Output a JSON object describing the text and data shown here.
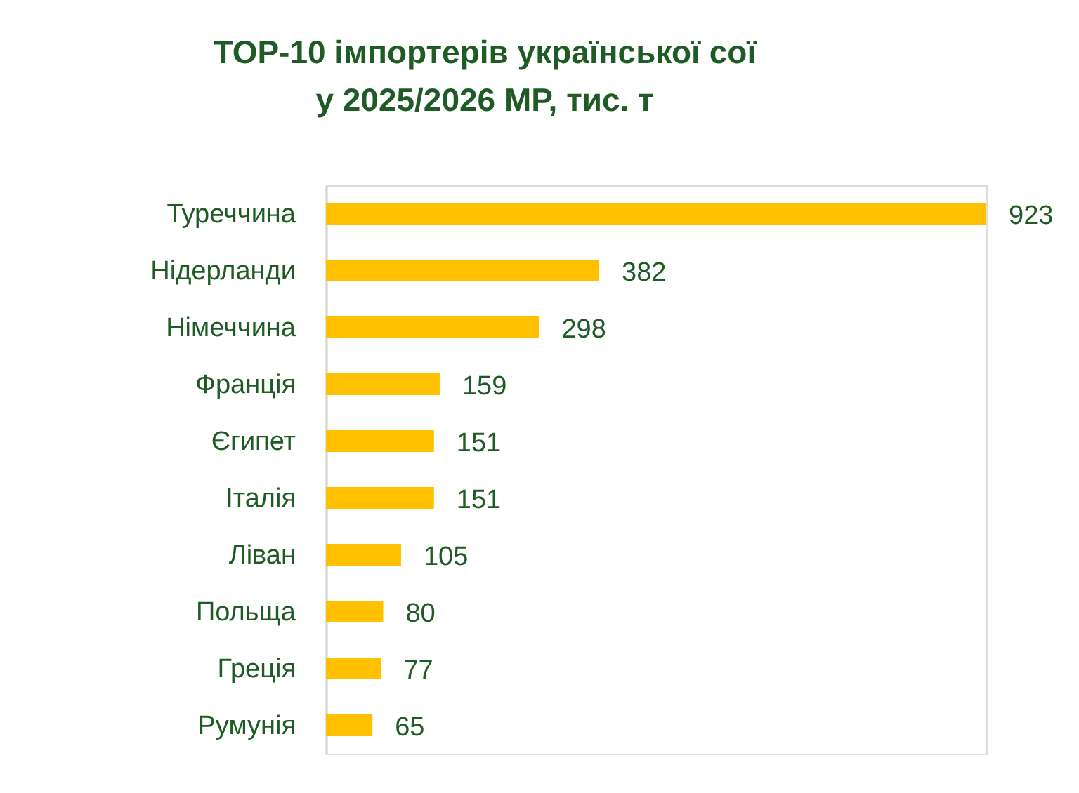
{
  "chart_data": {
    "type": "bar",
    "orientation": "horizontal",
    "title": "ТОР-10 імпортерів української сої\nу 2025/2026 МР, тис. т",
    "categories": [
      "Туреччина",
      "Нідерланди",
      "Німеччина",
      "Франція",
      "Єгипет",
      "Італія",
      "Ліван",
      "Польща",
      "Греція",
      "Румунія"
    ],
    "values": [
      923,
      382,
      298,
      159,
      151,
      151,
      105,
      80,
      77,
      65
    ],
    "color": "#ffc000",
    "data_labels": true,
    "grid": false,
    "tick_labels": "y"
  }
}
